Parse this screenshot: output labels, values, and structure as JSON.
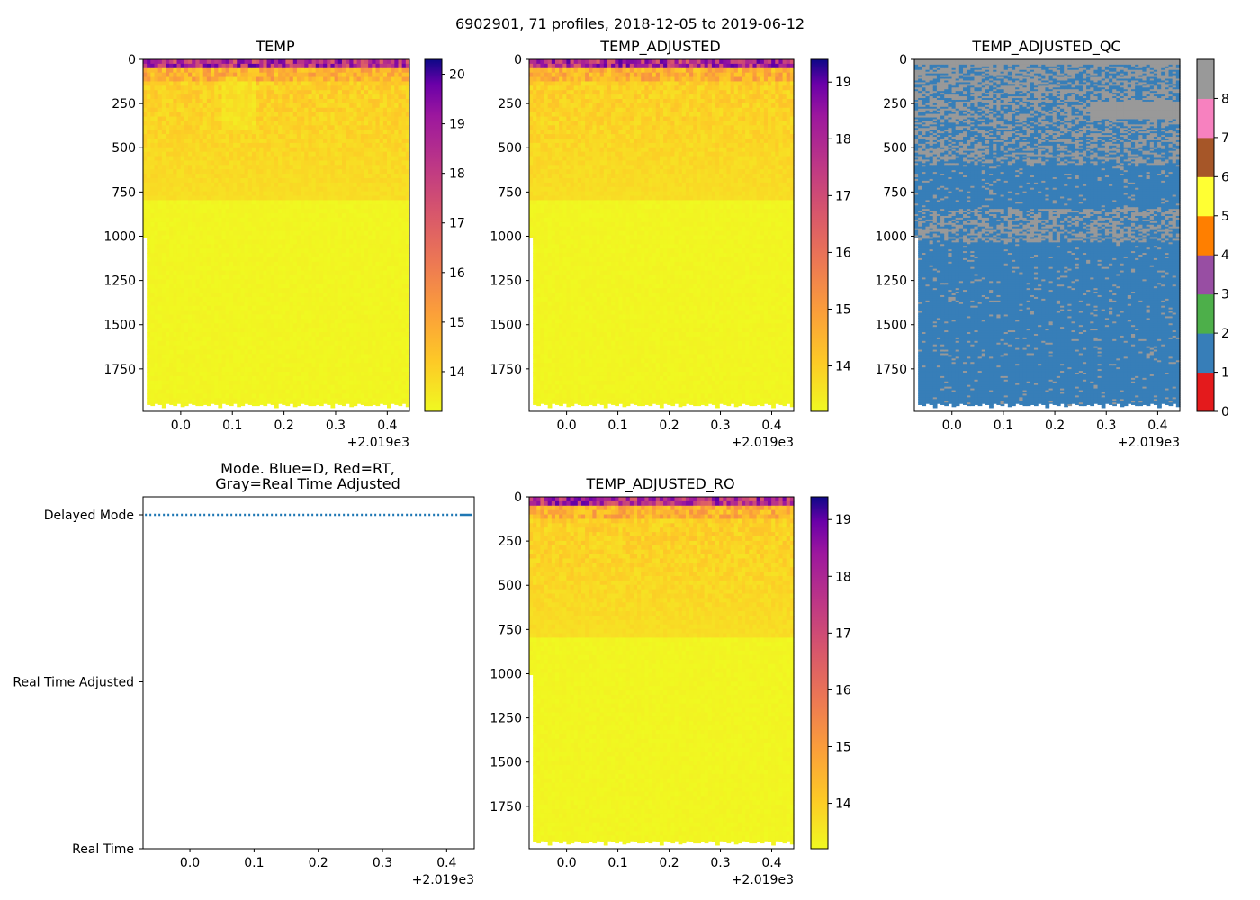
{
  "figure": {
    "title": "6902901, 71 profiles, 2018-12-05 to 2019-06-12"
  },
  "chart_data": [
    {
      "type": "heatmap",
      "title": "TEMP",
      "xlabel": "",
      "ylabel": "",
      "x_ticks": [
        "0.0",
        "0.1",
        "0.2",
        "0.3",
        "0.4"
      ],
      "x_offset_label": "+2.019e3",
      "y_ticks": [
        "0",
        "250",
        "500",
        "750",
        "1000",
        "1250",
        "1500",
        "1750"
      ],
      "colorbar": {
        "ticks": [
          "14",
          "15",
          "16",
          "17",
          "18",
          "19",
          "20"
        ],
        "range": [
          13.2,
          20.3
        ],
        "cmap": "plasma_r"
      }
    },
    {
      "type": "heatmap",
      "title": "TEMP_ADJUSTED",
      "xlabel": "",
      "ylabel": "",
      "x_ticks": [
        "0.0",
        "0.1",
        "0.2",
        "0.3",
        "0.4"
      ],
      "x_offset_label": "+2.019e3",
      "y_ticks": [
        "0",
        "250",
        "500",
        "750",
        "1000",
        "1250",
        "1500",
        "1750"
      ],
      "colorbar": {
        "ticks": [
          "14",
          "15",
          "16",
          "17",
          "18",
          "19"
        ],
        "range": [
          13.2,
          19.4
        ],
        "cmap": "plasma_r"
      }
    },
    {
      "type": "heatmap",
      "title": "TEMP_ADJUSTED_QC",
      "xlabel": "",
      "ylabel": "",
      "x_ticks": [
        "0.0",
        "0.1",
        "0.2",
        "0.3",
        "0.4"
      ],
      "x_offset_label": "+2.019e3",
      "y_ticks": [
        "0",
        "250",
        "500",
        "750",
        "1000",
        "1250",
        "1500",
        "1750"
      ],
      "colorbar": {
        "ticks": [
          "0",
          "1",
          "2",
          "3",
          "4",
          "5",
          "6",
          "7",
          "8"
        ],
        "range": [
          0,
          9
        ],
        "categories": [
          "0",
          "1",
          "2",
          "3",
          "4",
          "5",
          "6",
          "7",
          "8"
        ],
        "colors": [
          "#e41a1c",
          "#377eb8",
          "#4daf4a",
          "#984ea3",
          "#ff7f00",
          "#ffff33",
          "#a65628",
          "#f781bf",
          "#999999"
        ]
      }
    },
    {
      "type": "line",
      "title": "Mode. Blue=D, Red=RT,\nGray=Real Time Adjusted",
      "title_lines": [
        "Mode. Blue=D, Red=RT,",
        "Gray=Real Time Adjusted"
      ],
      "x_ticks": [
        "0.0",
        "0.1",
        "0.2",
        "0.3",
        "0.4"
      ],
      "x_offset_label": "+2.019e3",
      "y_categories": [
        "Delayed Mode",
        "Real Time Adjusted",
        "Real Time"
      ],
      "series": [
        {
          "name": "Delayed Mode",
          "color": "#1f77b4",
          "style": "dotted",
          "level": "Delayed Mode",
          "x_range": [
            -0.07,
            0.44
          ]
        }
      ]
    },
    {
      "type": "heatmap",
      "title": "TEMP_ADJUSTED_RO",
      "xlabel": "",
      "ylabel": "",
      "x_ticks": [
        "0.0",
        "0.1",
        "0.2",
        "0.3",
        "0.4"
      ],
      "x_offset_label": "+2.019e3",
      "y_ticks": [
        "0",
        "250",
        "500",
        "750",
        "1000",
        "1250",
        "1500",
        "1750"
      ],
      "colorbar": {
        "ticks": [
          "14",
          "15",
          "16",
          "17",
          "18",
          "19"
        ],
        "range": [
          13.2,
          19.4
        ],
        "cmap": "plasma_r"
      }
    }
  ]
}
